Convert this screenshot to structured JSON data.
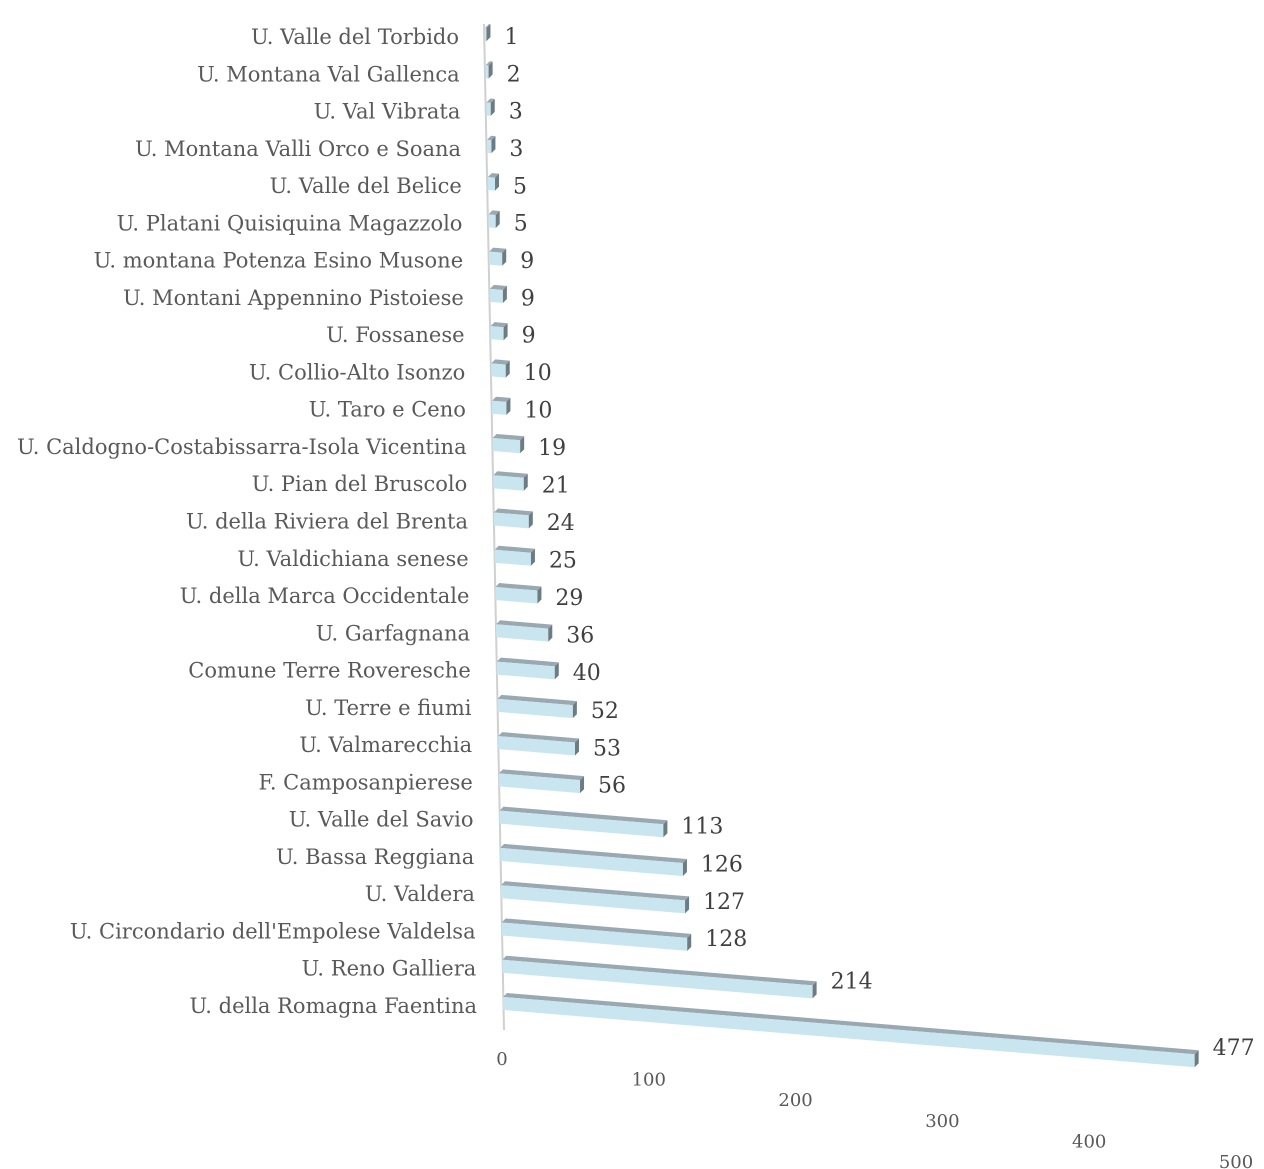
{
  "chart_data": {
    "type": "bar",
    "orientation": "horizontal",
    "style": "3d-perspective",
    "title": "",
    "xlabel": "",
    "ylabel": "",
    "xlim": [
      0,
      500
    ],
    "x_ticks": [
      "0",
      "100",
      "200",
      "300",
      "400",
      "500"
    ],
    "grid": false,
    "legend": "none",
    "colors": {
      "bar_front": "#c9e6f0",
      "bar_top": "#9aa9b1",
      "bar_end": "#6d7b82",
      "axis": "#d0d0d0"
    },
    "categories": [
      "U. Valle del Torbido",
      "U. Montana Val Gallenca",
      "U. Val Vibrata",
      "U. Montana Valli Orco e Soana",
      "U. Valle del Belice",
      "U. Platani Quisiquina Magazzolo",
      "U. montana Potenza Esino Musone",
      "U. Montani Appennino Pistoiese",
      "U. Fossanese",
      "U. Collio-Alto Isonzo",
      "U. Taro e Ceno",
      "U. Caldogno-Costabissarra-Isola Vicentina",
      "U. Pian del Bruscolo",
      "U. della Riviera del Brenta",
      "U. Valdichiana senese",
      "U. della Marca Occidentale",
      "U. Garfagnana",
      "Comune Terre Roveresche",
      "U. Terre e fiumi",
      "U. Valmarecchia",
      "F. Camposanpierese",
      "U. Valle del Savio",
      "U. Bassa Reggiana",
      "U. Valdera",
      "U. Circondario dell'Empolese Valdelsa",
      "U. Reno Galliera",
      "U. della Romagna Faentina"
    ],
    "values": [
      1,
      2,
      3,
      3,
      5,
      5,
      9,
      9,
      9,
      10,
      10,
      19,
      21,
      24,
      25,
      29,
      36,
      40,
      52,
      53,
      56,
      113,
      126,
      127,
      128,
      214,
      477
    ],
    "value_labels": [
      "1",
      "2",
      "3",
      "3",
      "5",
      "5",
      "9",
      "9",
      "9",
      "10",
      "10",
      "19",
      "21",
      "24",
      "25",
      "29",
      "36",
      "40",
      "52",
      "53",
      "56",
      "113",
      "126",
      "127",
      "128",
      "214",
      "477"
    ]
  }
}
